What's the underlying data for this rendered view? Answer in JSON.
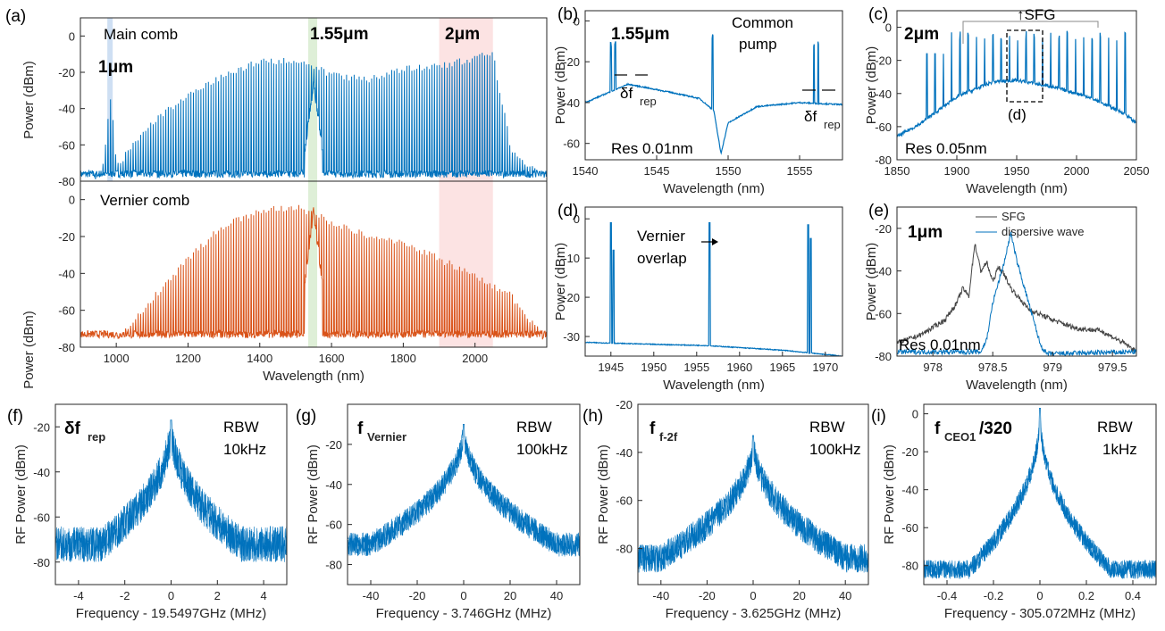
{
  "colors": {
    "blue": "#0072bd",
    "orange": "#d95319",
    "gray": "#444444",
    "purple": "#7030a0",
    "green": "#70ad47",
    "red": "#ff0000",
    "band_blue": "#c5d9f1",
    "band_green": "#d8ecd0",
    "band_red": "#fcdede"
  },
  "chart_data": [
    {
      "panel": "(a)",
      "type": "line",
      "xlabel": "Wavelength (nm)",
      "ylabel": "Power (dBm)",
      "xlim": [
        900,
        2200
      ],
      "ylim": [
        -80,
        10
      ],
      "xticks": [
        1000,
        1200,
        1400,
        1600,
        1800,
        2000
      ],
      "yticks": [
        0,
        -20,
        -40,
        -60,
        -80
      ],
      "bands": [
        {
          "label": "1μm",
          "range": [
            975,
            990
          ],
          "color": "band_blue"
        },
        {
          "label": "1.55μm",
          "range": [
            1535,
            1560
          ],
          "color": "band_green"
        },
        {
          "label": "2μm",
          "range": [
            1900,
            2050
          ],
          "color": "band_red"
        }
      ],
      "series": [
        {
          "name": "Main comb",
          "color": "blue",
          "floor": -76,
          "envelope": [
            [
              900,
              -78
            ],
            [
              960,
              -74
            ],
            [
              985,
              -30
            ],
            [
              1000,
              -70
            ],
            [
              1100,
              -46
            ],
            [
              1200,
              -30
            ],
            [
              1300,
              -20
            ],
            [
              1400,
              -12
            ],
            [
              1500,
              -12
            ],
            [
              1550,
              -14
            ],
            [
              1600,
              -20
            ],
            [
              1700,
              -22
            ],
            [
              1800,
              -16
            ],
            [
              1900,
              -15
            ],
            [
              2000,
              -10
            ],
            [
              2050,
              -8
            ],
            [
              2100,
              -60
            ],
            [
              2200,
              -78
            ]
          ],
          "peak": {
            "x": 1550,
            "y": -22
          }
        },
        {
          "name": "Vernier comb",
          "color": "orange",
          "floor": -73,
          "envelope": [
            [
              900,
              -78
            ],
            [
              1000,
              -74
            ],
            [
              1100,
              -52
            ],
            [
              1200,
              -30
            ],
            [
              1300,
              -12
            ],
            [
              1400,
              -4
            ],
            [
              1500,
              -2
            ],
            [
              1550,
              -6
            ],
            [
              1600,
              -10
            ],
            [
              1700,
              -18
            ],
            [
              1800,
              -22
            ],
            [
              1900,
              -30
            ],
            [
              2000,
              -40
            ],
            [
              2100,
              -50
            ],
            [
              2150,
              -62
            ],
            [
              2200,
              -76
            ]
          ],
          "peak": {
            "x": 1550,
            "y": -3
          }
        }
      ]
    },
    {
      "panel": "(b)",
      "type": "line",
      "xlabel": "Wavelength (nm)",
      "ylabel": "Power (dBm)",
      "xlim": [
        1540,
        1558
      ],
      "ylim": [
        -68,
        5
      ],
      "xticks": [
        1540,
        1545,
        1550,
        1555
      ],
      "yticks": [
        0,
        -20,
        -40,
        -60
      ],
      "annotations": [
        "1.55μm",
        "Common",
        "pump",
        "δf",
        "rep",
        "δf",
        "rep",
        "Res 0.01nm"
      ],
      "baseline": [
        [
          1540,
          -40
        ],
        [
          1543,
          -31
        ],
        [
          1546,
          -35
        ],
        [
          1548,
          -38
        ],
        [
          1549,
          -44
        ],
        [
          1549.5,
          -65
        ],
        [
          1550,
          -50
        ],
        [
          1552,
          -42
        ],
        [
          1555,
          -40
        ],
        [
          1558,
          -41
        ]
      ],
      "spikes": [
        [
          1541.8,
          -10
        ],
        [
          1542.1,
          -10
        ],
        [
          1548.9,
          -6
        ],
        [
          1556.0,
          -10
        ],
        [
          1556.3,
          -10
        ]
      ]
    },
    {
      "panel": "(c)",
      "type": "line",
      "xlabel": "Wavelength (nm)",
      "ylabel": "Power (dBm)",
      "xlim": [
        1850,
        2050
      ],
      "ylim": [
        -80,
        10
      ],
      "xticks": [
        1850,
        1900,
        1950,
        2000,
        2050
      ],
      "yticks": [
        0,
        -20,
        -40,
        -60,
        -80
      ],
      "annotations": [
        "2μm",
        "↑SFG",
        "(d)",
        "Res 0.05nm"
      ],
      "baseline": [
        [
          1850,
          -66
        ],
        [
          1870,
          -58
        ],
        [
          1900,
          -42
        ],
        [
          1930,
          -33
        ],
        [
          1950,
          -32
        ],
        [
          1980,
          -36
        ],
        [
          2010,
          -42
        ],
        [
          2040,
          -52
        ],
        [
          2050,
          -58
        ]
      ],
      "spikes_start": 1875,
      "spikes_step": 6.9,
      "spikes_count": 25,
      "spike_top": -2
    },
    {
      "panel": "(d)",
      "type": "line",
      "xlabel": "Wavelength (nm)",
      "ylabel": "Power (dBm)",
      "xlim": [
        1942,
        1972
      ],
      "ylim": [
        -35,
        3
      ],
      "xticks": [
        1945,
        1950,
        1955,
        1960,
        1965,
        1970
      ],
      "yticks": [
        0,
        -10,
        -20,
        -30
      ],
      "annotations": [
        "Vernier",
        "overlap"
      ],
      "baseline": [
        [
          1942,
          -31.5
        ],
        [
          1950,
          -32
        ],
        [
          1956,
          -32.3
        ],
        [
          1965,
          -33.5
        ],
        [
          1972,
          -35
        ]
      ],
      "spikes": [
        [
          1945,
          -1
        ],
        [
          1945.3,
          -8
        ],
        [
          1956.5,
          -1
        ],
        [
          1968,
          -1.5
        ],
        [
          1968.3,
          -5
        ]
      ]
    },
    {
      "panel": "(e)",
      "type": "line",
      "xlabel": "Wavelength (nm)",
      "ylabel": "Power (dBm)",
      "xlim": [
        977.7,
        979.7
      ],
      "ylim": [
        -80,
        -10
      ],
      "xticks": [
        978,
        978.5,
        979,
        979.5
      ],
      "yticks": [
        -20,
        -40,
        -60,
        -80
      ],
      "annotations": [
        "1μm",
        "Res 0.01nm"
      ],
      "series": [
        {
          "name": "SFG",
          "color": "gray",
          "points": [
            [
              977.7,
              -74
            ],
            [
              977.9,
              -70
            ],
            [
              978.1,
              -63
            ],
            [
              978.2,
              -55
            ],
            [
              978.25,
              -48
            ],
            [
              978.3,
              -52
            ],
            [
              978.35,
              -27
            ],
            [
              978.4,
              -40
            ],
            [
              978.45,
              -36
            ],
            [
              978.5,
              -45
            ],
            [
              978.55,
              -38
            ],
            [
              978.6,
              -42
            ],
            [
              978.65,
              -48
            ],
            [
              978.8,
              -58
            ],
            [
              979.0,
              -63
            ],
            [
              979.2,
              -67
            ],
            [
              979.4,
              -68
            ],
            [
              979.6,
              -74
            ],
            [
              979.7,
              -78
            ]
          ]
        },
        {
          "name": "dispersive wave",
          "color": "blue",
          "points": [
            [
              977.7,
              -78
            ],
            [
              978.4,
              -78
            ],
            [
              978.45,
              -72
            ],
            [
              978.5,
              -55
            ],
            [
              978.6,
              -35
            ],
            [
              978.65,
              -22
            ],
            [
              978.7,
              -35
            ],
            [
              978.8,
              -55
            ],
            [
              978.9,
              -75
            ],
            [
              978.95,
              -79
            ],
            [
              979.7,
              -78
            ]
          ]
        }
      ]
    },
    {
      "panel": "(f)",
      "type": "line",
      "xlabel": "Frequency - 19.5497GHz (MHz)",
      "ylabel": "RF Power (dBm)",
      "xlim": [
        -5,
        5
      ],
      "ylim": [
        -90,
        -10
      ],
      "xticks": [
        -4,
        -2,
        0,
        2,
        4
      ],
      "xtick_labels": [
        "-4",
        "-2",
        "0",
        "2",
        "4"
      ],
      "yticks": [
        -20,
        -40,
        -60,
        -80
      ],
      "annotations": [
        "δf",
        "rep",
        "RBW",
        "10kHz"
      ],
      "floor": -72,
      "noise": 8,
      "peak": -17,
      "width": 0.05
    },
    {
      "panel": "(g)",
      "type": "line",
      "xlabel": "Frequency - 3.746GHz (MHz)",
      "ylabel": "RF Power (dBm)",
      "xlim": [
        -50,
        50
      ],
      "ylim": [
        -90,
        0
      ],
      "xticks": [
        -40,
        -20,
        0,
        20,
        40
      ],
      "xtick_labels": [
        "-40",
        "-20",
        "0",
        "20",
        "40"
      ],
      "yticks": [
        -20,
        -40,
        -60,
        -80
      ],
      "annotations": [
        "f",
        "Vernier",
        "RBW",
        "100kHz"
      ],
      "floor": -70,
      "noise": 6,
      "peak": -10,
      "width": 3
    },
    {
      "panel": "(h)",
      "type": "line",
      "xlabel": "Frequency - 3.625GHz (MHz)",
      "ylabel": "RF Power (dBm)",
      "xlim": [
        -50,
        50
      ],
      "ylim": [
        -95,
        -20
      ],
      "xticks": [
        -40,
        -20,
        0,
        20,
        40
      ],
      "xtick_labels": [
        "-40",
        "-20",
        "0",
        "20",
        "40"
      ],
      "yticks": [
        -20,
        -40,
        -60,
        -80
      ],
      "annotations": [
        "f",
        "f-2f",
        "RBW",
        "100kHz"
      ],
      "floor": -84,
      "noise": 6,
      "peak": -33,
      "width": 2
    },
    {
      "panel": "(i)",
      "type": "line",
      "xlabel": "Frequency - 305.072MHz (MHz)",
      "ylabel": "RF Power (dBm)",
      "xlim": [
        -0.5,
        0.5
      ],
      "ylim": [
        -90,
        5
      ],
      "xticks": [
        -0.4,
        -0.2,
        0,
        0.2,
        0.4
      ],
      "xtick_labels": [
        "-0.4",
        "-0.2",
        "0",
        "0.2",
        "0.4"
      ],
      "yticks": [
        0,
        -20,
        -40,
        -60,
        -80
      ],
      "annotations": [
        "f",
        "CEO1",
        "/320",
        "RBW",
        "1kHz"
      ],
      "floor": -82,
      "noise": 5,
      "peak": 3,
      "width": 0.015
    }
  ]
}
